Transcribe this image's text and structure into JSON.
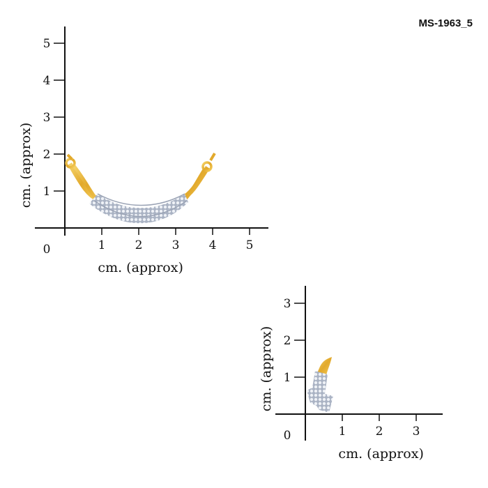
{
  "product_code": "MS-1963_5",
  "colors": {
    "gold": "#e8b53a",
    "silver": "#c9d0dc",
    "axis": "#111111"
  },
  "scales": [
    {
      "name": "pendant-scale",
      "x_label": "cm. (approx)",
      "y_label": "cm. (approx)",
      "origin_label": "0",
      "x_ticks": [
        "1",
        "2",
        "3",
        "4",
        "5"
      ],
      "y_ticks": [
        "1",
        "2",
        "3",
        "4",
        "5"
      ],
      "unit": "cm"
    },
    {
      "name": "earring-scale",
      "x_label": "cm. (approx)",
      "y_label": "cm. (approx)",
      "origin_label": "0",
      "x_ticks": [
        "1",
        "2",
        "3"
      ],
      "y_ticks": [
        "1",
        "2",
        "3"
      ],
      "unit": "cm"
    }
  ],
  "items": [
    {
      "name": "mangalsutra-pendant",
      "width_cm": 4,
      "height_cm": 2
    },
    {
      "name": "earring",
      "width_cm": 0.7,
      "height_cm": 1.5
    }
  ]
}
